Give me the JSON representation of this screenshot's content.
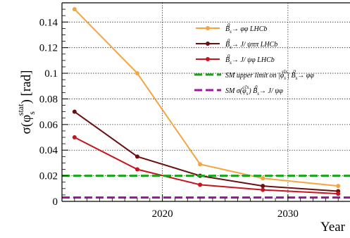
{
  "chart_data": {
    "type": "line",
    "title": "",
    "xlabel": "Year",
    "ylabel": "σ(φ_s)^stat [rad]",
    "ylabel_parts": {
      "main": "σ(φ",
      "sub": "s",
      "sup": "stat",
      "close": ")",
      "unit": " [rad]"
    },
    "xlim": [
      2012,
      2035
    ],
    "ylim": [
      0,
      0.155
    ],
    "x_ticks": [
      2020,
      2030
    ],
    "x_tick_labels": [
      "2020",
      "2030"
    ],
    "y_ticks": [
      0,
      0.02,
      0.04,
      0.06,
      0.08,
      0.1,
      0.12,
      0.14
    ],
    "y_tick_labels": [
      "0",
      "0.02",
      "0.04",
      "0.06",
      "0.08",
      "0.1",
      "0.12",
      "0.14"
    ],
    "grid": true,
    "legend_position": "top-right",
    "series": [
      {
        "name": "B_s^0 → φφ LHCb",
        "legend_text": "Bs0 → φφ LHCb",
        "color": "#f5a441",
        "style": "solid-markers",
        "x": [
          2013,
          2018,
          2023,
          2028,
          2034
        ],
        "y": [
          0.15,
          0.1,
          0.029,
          0.018,
          0.012
        ]
      },
      {
        "name": "B_s^0 → J/ψππ LHCb",
        "legend_text": "Bs0 → J/ ψππ LHCb",
        "color": "#6b1010",
        "style": "solid-markers",
        "x": [
          2013,
          2018,
          2023,
          2028,
          2034
        ],
        "y": [
          0.07,
          0.035,
          0.02,
          0.012,
          0.008
        ]
      },
      {
        "name": "B_s^0 → J/ψφ LHCb",
        "legend_text": "Bs0 → J/ ψφ LHCb",
        "color": "#c8141e",
        "style": "solid-markers",
        "x": [
          2013,
          2018,
          2023,
          2028,
          2034
        ],
        "y": [
          0.05,
          0.025,
          0.013,
          0.009,
          0.006
        ]
      },
      {
        "name": "SM upper limit on |φ_s^ss̄s| B_s^0 → φφ",
        "legend_text": "SM upper limit on |φs ss̄s| Bs0 → φφ",
        "color": "#1aa31a",
        "style": "dashed",
        "constant": 0.02
      },
      {
        "name": "SM σ(φ_s^cc̄s) B_s^0 → J/ψφ",
        "legend_text": "SM σ(φs cc̄s) Bs0 → J/ ψφ",
        "color": "#a3169b",
        "style": "dashed",
        "constant": 0.003
      }
    ]
  }
}
